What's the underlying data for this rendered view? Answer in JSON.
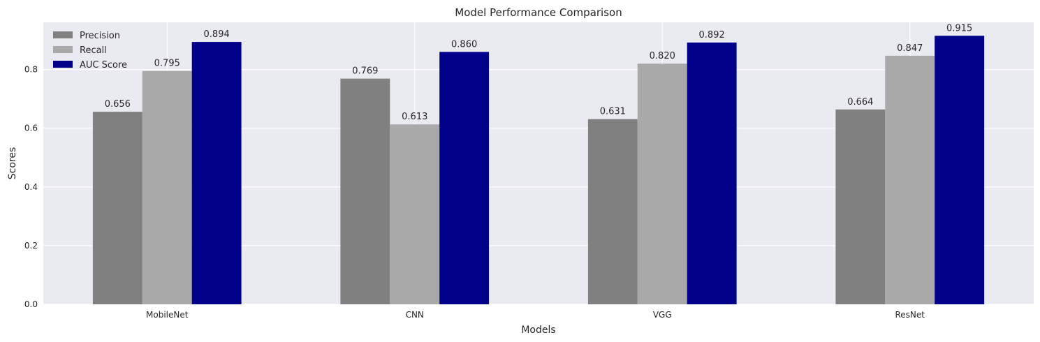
{
  "chart_data": {
    "type": "bar",
    "title": "Model Performance Comparison",
    "xlabel": "Models",
    "ylabel": "Scores",
    "categories": [
      "MobileNet",
      "CNN",
      "VGG",
      "ResNet"
    ],
    "series": [
      {
        "name": "Precision",
        "color": "#808080",
        "values": [
          0.656,
          0.769,
          0.631,
          0.664
        ],
        "labels": [
          "0.656",
          "0.769",
          "0.631",
          "0.664"
        ]
      },
      {
        "name": "Recall",
        "color": "#a9a9a9",
        "values": [
          0.795,
          0.613,
          0.82,
          0.847
        ],
        "labels": [
          "0.795",
          "0.613",
          "0.820",
          "0.847"
        ]
      },
      {
        "name": "AUC Score",
        "color": "#00008b",
        "values": [
          0.894,
          0.86,
          0.892,
          0.915
        ],
        "labels": [
          "0.894",
          "0.860",
          "0.892",
          "0.915"
        ]
      }
    ],
    "ylim": [
      0,
      0.9608
    ],
    "yticks": [
      "0.0",
      "0.2",
      "0.4",
      "0.6",
      "0.8"
    ],
    "ytick_values": [
      0,
      0.2,
      0.4,
      0.6,
      0.8
    ],
    "grid": true,
    "legend_position": "top-left",
    "background": "#eaeaf2",
    "gridline_color": "#ffffff"
  }
}
